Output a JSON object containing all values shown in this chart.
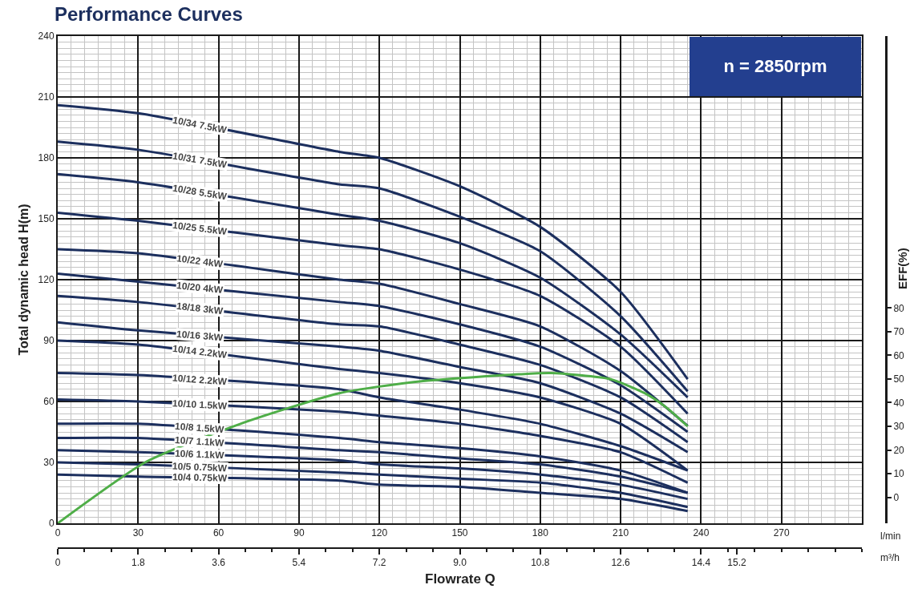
{
  "chart_data": {
    "type": "line",
    "title": "Performance Curves",
    "xlabel": "Flowrate Q",
    "ylabel": "Total dynamic head H(m)",
    "y2label": "EFF(%)",
    "x": [
      0,
      30,
      105,
      120,
      150,
      180,
      210,
      235
    ],
    "xlim": [
      0,
      300
    ],
    "xticks": [
      0,
      30,
      60,
      90,
      120,
      150,
      180,
      210,
      240,
      270
    ],
    "x2lim": [
      0,
      18
    ],
    "x2ticks": [
      0,
      1.8,
      3.6,
      5.4,
      7.2,
      {
        "value": 9,
        "label": "9.0"
      },
      10.8,
      12.6,
      14.4,
      15.2
    ],
    "ylim": [
      0,
      240
    ],
    "yticks": [
      0,
      30,
      60,
      90,
      120,
      150,
      180,
      210,
      240
    ],
    "y2lim": [
      -11,
      195
    ],
    "y2ticks": [
      0,
      10,
      20,
      30,
      40,
      50,
      60,
      70,
      80
    ],
    "grid": true,
    "legend": false,
    "marker": "none",
    "line_style": "solid",
    "annotations": [
      "n = 2850rpm",
      "l/min",
      "m³/h"
    ],
    "series": [
      {
        "name": "10/34 7.5kW",
        "color": "#1c2f5e",
        "values": [
          206,
          202,
          183,
          180,
          166,
          146,
          114,
          71
        ]
      },
      {
        "name": "10/31 7.5kW",
        "color": "#1c2f5e",
        "values": [
          188,
          184,
          167,
          165,
          151,
          134,
          102,
          65
        ]
      },
      {
        "name": "10/28 5.5kW",
        "color": "#1c2f5e",
        "values": [
          172,
          168,
          152,
          149,
          138,
          121,
          93,
          62
        ]
      },
      {
        "name": "10/25 5.5kW",
        "color": "#1c2f5e",
        "values": [
          153,
          149,
          137,
          135,
          125,
          112,
          87,
          54
        ]
      },
      {
        "name": "10/22 4kW",
        "color": "#1c2f5e",
        "values": [
          135,
          133,
          120,
          118,
          108,
          97,
          75,
          48
        ]
      },
      {
        "name": "10/20 4kW",
        "color": "#1c2f5e",
        "values": [
          123,
          119,
          109,
          107,
          98,
          87,
          68,
          45
        ]
      },
      {
        "name": "18/18 3kW",
        "color": "#1c2f5e",
        "values": [
          112,
          109,
          98,
          97,
          88,
          78,
          62,
          40
        ]
      },
      {
        "name": "10/16 3kW",
        "color": "#1c2f5e",
        "values": [
          99,
          95,
          87,
          85,
          77,
          69,
          54,
          35
        ]
      },
      {
        "name": "10/14 2.2kW",
        "color": "#1c2f5e",
        "values": [
          90,
          88,
          76,
          74,
          69,
          62,
          49,
          26
        ]
      },
      {
        "name": "10/12 2.2kW",
        "color": "#1c2f5e",
        "values": [
          74,
          73,
          66,
          62,
          56,
          49,
          38,
          26
        ]
      },
      {
        "name": "10/10 1.5kW",
        "color": "#1c2f5e",
        "values": [
          61,
          60,
          55,
          53,
          49,
          43,
          35,
          20
        ]
      },
      {
        "name": "10/8 1.5kW",
        "color": "#1c2f5e",
        "values": [
          49,
          49,
          42,
          40,
          37,
          33,
          26,
          15
        ]
      },
      {
        "name": "10/7 1.1kW",
        "color": "#1c2f5e",
        "values": [
          42,
          42,
          36,
          35,
          32,
          29,
          23,
          15
        ]
      },
      {
        "name": "10/6 1.1kW",
        "color": "#1c2f5e",
        "values": [
          36,
          35,
          31,
          29,
          27,
          24,
          19,
          12
        ]
      },
      {
        "name": "10/5 0.75kW",
        "color": "#1c2f5e",
        "values": [
          30,
          29,
          25,
          24,
          22,
          20,
          15,
          8
        ]
      },
      {
        "name": "10/4 0.75kW",
        "color": "#1c2f5e",
        "values": [
          24,
          23,
          21,
          19,
          18,
          15,
          12,
          6
        ]
      },
      {
        "axis": "y2",
        "color": "#4fae48",
        "x": [
          0,
          33,
          68,
          105,
          135,
          172,
          184,
          206,
          219,
          227,
          235
        ],
        "values": [
          -11,
          15,
          31,
          44,
          49,
          52,
          52.5,
          50,
          44,
          38,
          30
        ]
      }
    ]
  }
}
